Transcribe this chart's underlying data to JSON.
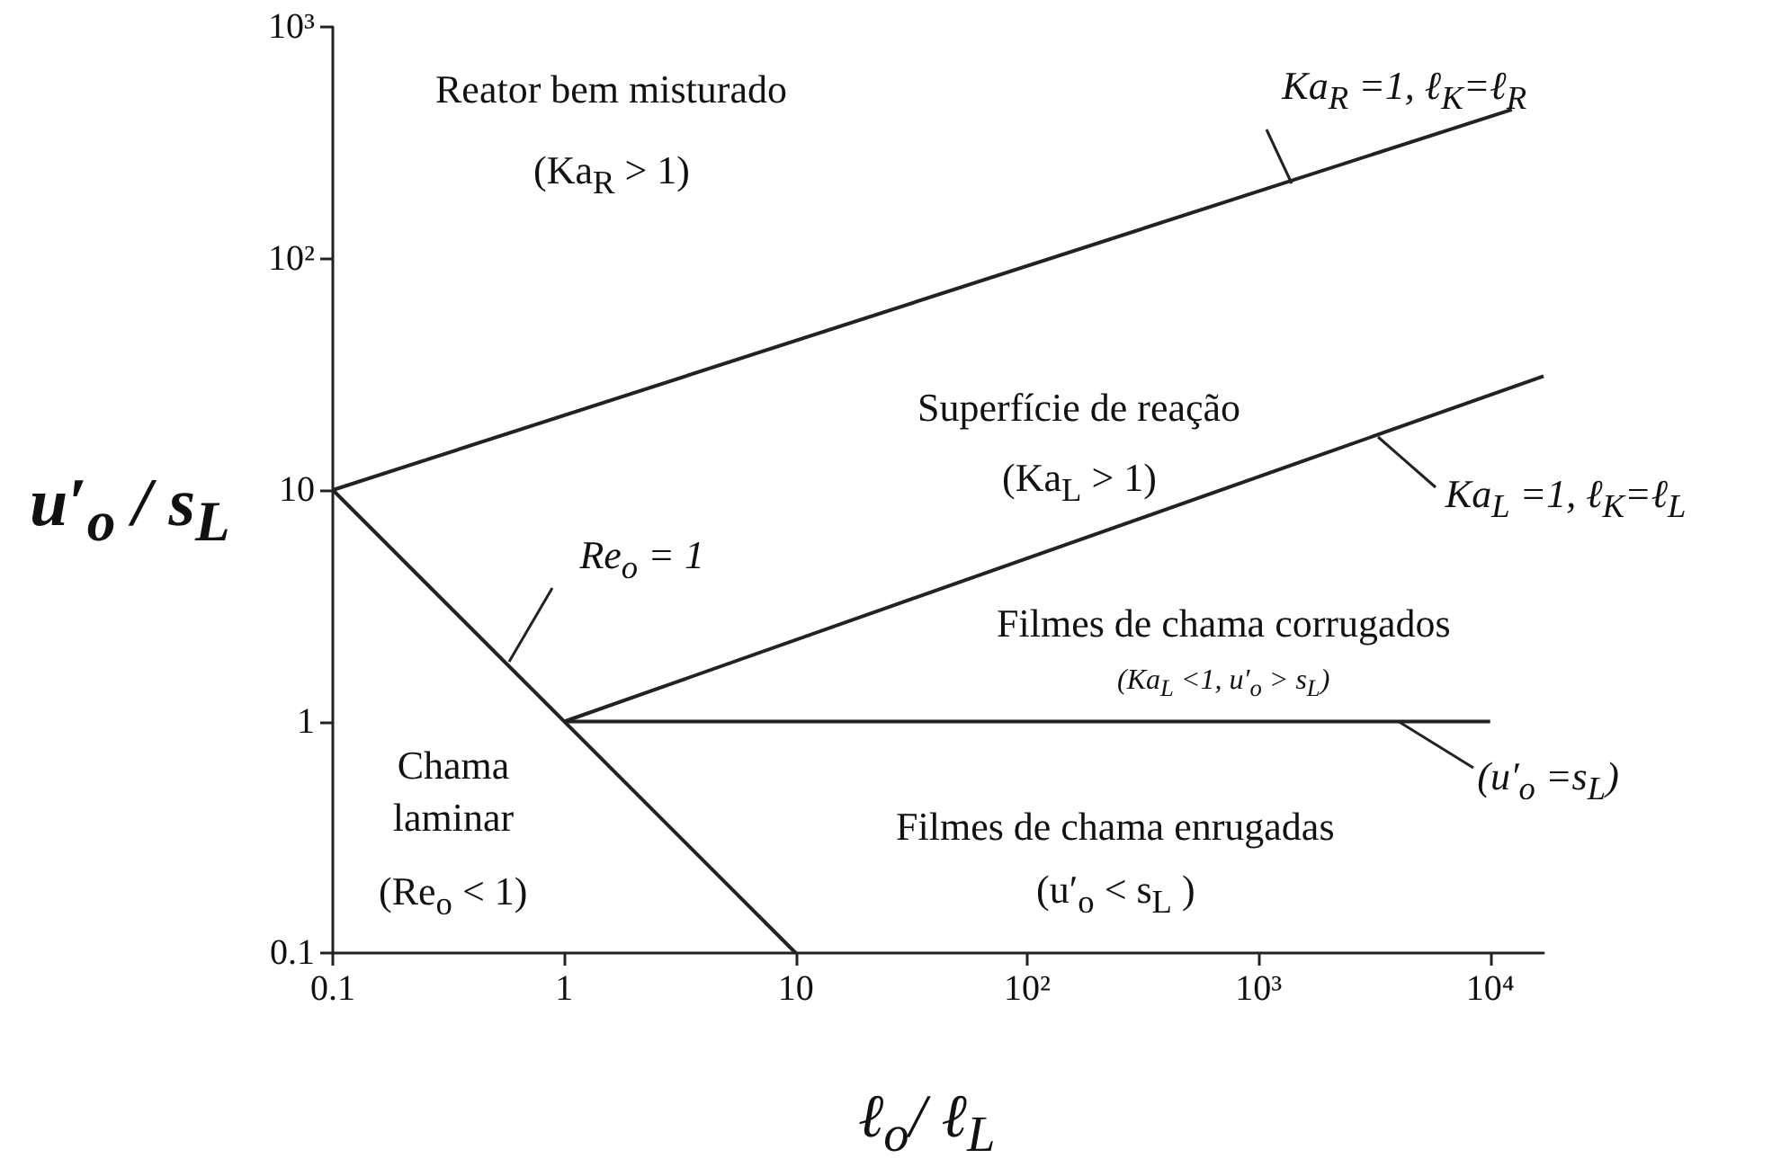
{
  "chart_data": {
    "type": "line",
    "xlabel": "ℓ$_{o}$/ ℓ$_{L}$",
    "ylabel": "u′$_{o}$ / s$_{L}$",
    "log": "xy",
    "grid": false,
    "marker": "none",
    "line_style": "solid",
    "xlim": [
      0.1,
      17000
    ],
    "xticks": [
      0.1,
      1,
      10,
      {
        "value": 100,
        "label": "10²"
      },
      {
        "value": 1000,
        "label": "10³"
      },
      {
        "value": 10000,
        "label": "10⁴"
      }
    ],
    "ylim": [
      0.1,
      1000
    ],
    "yticks": [
      0.1,
      1,
      10,
      {
        "value": 100,
        "label": "10²"
      },
      {
        "value": 1000,
        "label": "10³"
      }
    ],
    "series": [
      {
        "color": "#222222",
        "x": [
          0.1,
          12400
        ],
        "values": [
          10,
          440
        ]
      },
      {
        "color": "#222222",
        "x": [
          1,
          17000
        ],
        "values": [
          1,
          31
        ]
      },
      {
        "color": "#222222",
        "x": [
          1,
          10000
        ],
        "values": [
          1,
          1
        ]
      },
      {
        "color": "#222222",
        "x": [
          0.1,
          10
        ],
        "values": [
          10,
          0.1
        ]
      }
    ],
    "annotations": [
      {
        "text": "Ka$_{R}$ =1,  ℓ$_{K}$=ℓ$_{R}$",
        "x": 1380,
        "y": 210
      },
      {
        "text": "Ka$_{L}$ =1,  ℓ$_{K}$=ℓ$_{L}$",
        "x": 3300,
        "y": 17
      },
      {
        "text": "(u′$_{o}$ =s$_{L}$)",
        "x": 4000,
        "y": 1
      },
      {
        "text": "Re$_{o}$ = 1",
        "x": 0.58,
        "y": 1.8
      },
      "Reator bem misturado",
      "(Ka$_{R}$ > 1)",
      "Superfície de reação",
      "(Ka$_{L}$ > 1)",
      "Filmes de chama corrugados",
      "(Ka$_{L}$ <1,   u′$_{o}$ > s$_{L}$)",
      "Chama laminar",
      "(Re$_{o}$ < 1)",
      "Filmes de chama enrugadas",
      "(u′$_{o}$ < s$_{L}$ )"
    ]
  }
}
